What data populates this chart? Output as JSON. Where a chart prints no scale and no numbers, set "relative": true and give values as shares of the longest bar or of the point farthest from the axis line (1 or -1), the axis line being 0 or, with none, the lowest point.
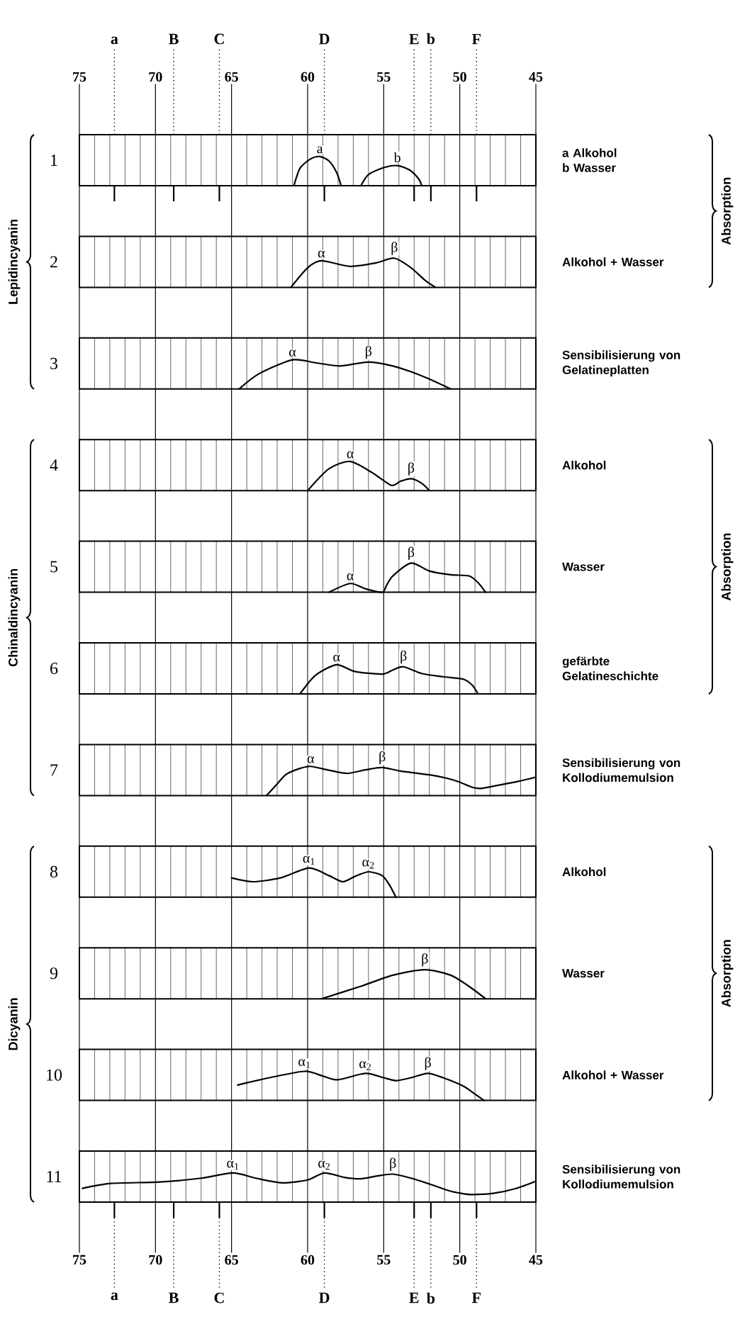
{
  "chart_data": [
    {
      "type": "line",
      "title": "1",
      "y2label": "Absorption",
      "relative": true,
      "xlim": [
        75,
        45
      ],
      "xticks": [
        75,
        {
          "value": 74,
          "label": null
        },
        {
          "value": 73,
          "label": null
        },
        {
          "value": 72,
          "label": null
        },
        {
          "value": 71,
          "label": null
        },
        70,
        {
          "value": 69,
          "label": null
        },
        {
          "value": 68,
          "label": null
        },
        {
          "value": 67,
          "label": null
        },
        {
          "value": 66,
          "label": null
        },
        65,
        {
          "value": 64,
          "label": null
        },
        {
          "value": 63,
          "label": null
        },
        {
          "value": 62,
          "label": null
        },
        {
          "value": 61,
          "label": null
        },
        60,
        {
          "value": 59,
          "label": null
        },
        {
          "value": 58,
          "label": null
        },
        {
          "value": 57,
          "label": null
        },
        {
          "value": 56,
          "label": null
        },
        55,
        {
          "value": 54,
          "label": null
        },
        {
          "value": 53,
          "label": null
        },
        {
          "value": 52,
          "label": null
        },
        {
          "value": 51,
          "label": null
        },
        50,
        {
          "value": 49,
          "label": null
        },
        {
          "value": 48,
          "label": null
        },
        {
          "value": 47,
          "label": null
        },
        {
          "value": 46,
          "label": null
        },
        45
      ],
      "tick_labels": "x",
      "grid": "x",
      "series": [
        {
          "color": "#000000",
          "x": [
            60.9,
            60.5,
            59.8,
            59.2,
            58.6,
            58.1,
            57.8
          ],
          "values": [
            0,
            0.6,
            0.92,
            1,
            0.85,
            0.46,
            0
          ]
        },
        {
          "color": "#000000",
          "x": [
            56.5,
            56.0,
            55.0,
            54.1,
            53.3,
            52.7,
            52.5
          ],
          "values": [
            0,
            0.38,
            0.62,
            0.69,
            0.54,
            0.23,
            0
          ]
        }
      ],
      "annotations": [
        "a Alkohol",
        "b Wasser",
        {
          "text": "a",
          "x": 59.2,
          "y": 1
        },
        {
          "text": "b",
          "x": 54.1,
          "y": 0.69
        }
      ],
      "ref_lines": [
        {
          "axis": "x",
          "value": 72.7,
          "label": "a",
          "line_style": "dotted"
        },
        {
          "axis": "x",
          "value": 68.8,
          "label": "B",
          "line_style": "dotted"
        },
        {
          "axis": "x",
          "value": 65.8,
          "label": "C",
          "line_style": "dotted"
        },
        {
          "axis": "x",
          "value": 58.9,
          "label": "D",
          "line_style": "dotted"
        },
        {
          "axis": "x",
          "value": 53.0,
          "label": "E",
          "line_style": "dotted"
        },
        {
          "axis": "x",
          "value": 51.9,
          "label": "b",
          "line_style": "dotted"
        },
        {
          "axis": "x",
          "value": 48.9,
          "label": "F",
          "line_style": "dotted"
        }
      ]
    },
    {
      "type": "line",
      "title": "2",
      "ylabel": "Lepidincyanin",
      "relative": true,
      "xlim": [
        75,
        45
      ],
      "xticks": [
        75,
        {
          "value": 74,
          "label": null
        },
        {
          "value": 73,
          "label": null
        },
        {
          "value": 72,
          "label": null
        },
        {
          "value": 71,
          "label": null
        },
        70,
        {
          "value": 69,
          "label": null
        },
        {
          "value": 68,
          "label": null
        },
        {
          "value": 67,
          "label": null
        },
        {
          "value": 66,
          "label": null
        },
        65,
        {
          "value": 64,
          "label": null
        },
        {
          "value": 63,
          "label": null
        },
        {
          "value": 62,
          "label": null
        },
        {
          "value": 61,
          "label": null
        },
        60,
        {
          "value": 59,
          "label": null
        },
        {
          "value": 58,
          "label": null
        },
        {
          "value": 57,
          "label": null
        },
        {
          "value": 56,
          "label": null
        },
        55,
        {
          "value": 54,
          "label": null
        },
        {
          "value": 53,
          "label": null
        },
        {
          "value": 52,
          "label": null
        },
        {
          "value": 51,
          "label": null
        },
        50,
        {
          "value": 49,
          "label": null
        },
        {
          "value": 48,
          "label": null
        },
        {
          "value": 47,
          "label": null
        },
        {
          "value": 46,
          "label": null
        },
        45
      ],
      "tick_labels": false,
      "grid": "x",
      "series": [
        {
          "color": "#000000",
          "x": [
            61.1,
            60.0,
            59.1,
            57.2,
            55.5,
            54.3,
            53.2,
            52.3,
            51.6
          ],
          "values": [
            0,
            0.67,
            0.91,
            0.72,
            0.84,
            1,
            0.67,
            0.25,
            0
          ]
        }
      ],
      "annotations": [
        "Alkohol + Wasser",
        {
          "text": "α",
          "x": 59.1,
          "y": 0.91
        },
        {
          "text": "β",
          "x": 54.3,
          "y": 1
        }
      ]
    },
    {
      "type": "line",
      "title": "3",
      "relative": true,
      "xlim": [
        75,
        45
      ],
      "xticks": [
        75,
        {
          "value": 74,
          "label": null
        },
        {
          "value": 73,
          "label": null
        },
        {
          "value": 72,
          "label": null
        },
        {
          "value": 71,
          "label": null
        },
        70,
        {
          "value": 69,
          "label": null
        },
        {
          "value": 68,
          "label": null
        },
        {
          "value": 67,
          "label": null
        },
        {
          "value": 66,
          "label": null
        },
        65,
        {
          "value": 64,
          "label": null
        },
        {
          "value": 63,
          "label": null
        },
        {
          "value": 62,
          "label": null
        },
        {
          "value": 61,
          "label": null
        },
        60,
        {
          "value": 59,
          "label": null
        },
        {
          "value": 58,
          "label": null
        },
        {
          "value": 57,
          "label": null
        },
        {
          "value": 56,
          "label": null
        },
        55,
        {
          "value": 54,
          "label": null
        },
        {
          "value": 53,
          "label": null
        },
        {
          "value": 52,
          "label": null
        },
        {
          "value": 51,
          "label": null
        },
        50,
        {
          "value": 49,
          "label": null
        },
        {
          "value": 48,
          "label": null
        },
        {
          "value": 47,
          "label": null
        },
        {
          "value": 46,
          "label": null
        },
        45
      ],
      "tick_labels": false,
      "grid": "x",
      "series": [
        {
          "color": "#000000",
          "x": [
            64.5,
            63.2,
            61.0,
            59.5,
            57.9,
            56.0,
            54.4,
            53.2,
            52.0,
            50.6
          ],
          "values": [
            0,
            0.52,
            1,
            0.9,
            0.79,
            0.92,
            0.79,
            0.59,
            0.34,
            0
          ]
        }
      ],
      "annotations": [
        "Sensibilisierung von Gelatineplatten",
        {
          "text": "α",
          "x": 61.0,
          "y": 1
        },
        {
          "text": "β",
          "x": 56.0,
          "y": 0.92
        }
      ]
    },
    {
      "type": "line",
      "title": "4",
      "y2label": "Absorption",
      "relative": true,
      "xlim": [
        75,
        45
      ],
      "xticks": [
        75,
        {
          "value": 74,
          "label": null
        },
        {
          "value": 73,
          "label": null
        },
        {
          "value": 72,
          "label": null
        },
        {
          "value": 71,
          "label": null
        },
        70,
        {
          "value": 69,
          "label": null
        },
        {
          "value": 68,
          "label": null
        },
        {
          "value": 67,
          "label": null
        },
        {
          "value": 66,
          "label": null
        },
        65,
        {
          "value": 64,
          "label": null
        },
        {
          "value": 63,
          "label": null
        },
        {
          "value": 62,
          "label": null
        },
        {
          "value": 61,
          "label": null
        },
        60,
        {
          "value": 59,
          "label": null
        },
        {
          "value": 58,
          "label": null
        },
        {
          "value": 57,
          "label": null
        },
        {
          "value": 56,
          "label": null
        },
        55,
        {
          "value": 54,
          "label": null
        },
        {
          "value": 53,
          "label": null
        },
        {
          "value": 52,
          "label": null
        },
        {
          "value": 51,
          "label": null
        },
        50,
        {
          "value": 49,
          "label": null
        },
        {
          "value": 48,
          "label": null
        },
        {
          "value": 47,
          "label": null
        },
        {
          "value": 46,
          "label": null
        },
        45
      ],
      "tick_labels": false,
      "grid": "x",
      "series": [
        {
          "color": "#000000",
          "x": [
            60.0,
            58.6,
            57.2,
            55.8,
            54.5,
            53.9,
            53.2,
            52.5,
            52.0
          ],
          "values": [
            0,
            0.75,
            1,
            0.63,
            0.18,
            0.32,
            0.41,
            0.25,
            0
          ]
        }
      ],
      "annotations": [
        "Alkohol",
        {
          "text": "α",
          "x": 57.2,
          "y": 1
        },
        {
          "text": "β",
          "x": 53.2,
          "y": 0.41
        }
      ]
    },
    {
      "type": "line",
      "title": "5",
      "ylabel": "Chinaldincyanin",
      "relative": true,
      "xlim": [
        75,
        45
      ],
      "xticks": [
        75,
        {
          "value": 74,
          "label": null
        },
        {
          "value": 73,
          "label": null
        },
        {
          "value": 72,
          "label": null
        },
        {
          "value": 71,
          "label": null
        },
        70,
        {
          "value": 69,
          "label": null
        },
        {
          "value": 68,
          "label": null
        },
        {
          "value": 67,
          "label": null
        },
        {
          "value": 66,
          "label": null
        },
        65,
        {
          "value": 64,
          "label": null
        },
        {
          "value": 63,
          "label": null
        },
        {
          "value": 62,
          "label": null
        },
        {
          "value": 61,
          "label": null
        },
        60,
        {
          "value": 59,
          "label": null
        },
        {
          "value": 58,
          "label": null
        },
        {
          "value": 57,
          "label": null
        },
        {
          "value": 56,
          "label": null
        },
        55,
        {
          "value": 54,
          "label": null
        },
        {
          "value": 53,
          "label": null
        },
        {
          "value": 52,
          "label": null
        },
        {
          "value": 51,
          "label": null
        },
        50,
        {
          "value": 49,
          "label": null
        },
        {
          "value": 48,
          "label": null
        },
        {
          "value": 47,
          "label": null
        },
        {
          "value": 46,
          "label": null
        },
        45
      ],
      "tick_labels": false,
      "grid": "x",
      "series": [
        {
          "color": "#000000",
          "x": [
            58.6,
            57.2,
            56.2,
            55.1,
            54.8,
            54.4,
            53.2,
            52.0,
            50.6,
            49.4,
            48.8,
            48.3
          ],
          "values": [
            0,
            0.3,
            0.12,
            0,
            0.25,
            0.56,
            1,
            0.73,
            0.6,
            0.56,
            0.33,
            0
          ]
        }
      ],
      "annotations": [
        "Wasser",
        {
          "text": "α",
          "x": 57.2,
          "y": 0.3
        },
        {
          "text": "β",
          "x": 53.2,
          "y": 1
        }
      ]
    },
    {
      "type": "line",
      "title": "6",
      "relative": true,
      "xlim": [
        75,
        45
      ],
      "xticks": [
        75,
        {
          "value": 74,
          "label": null
        },
        {
          "value": 73,
          "label": null
        },
        {
          "value": 72,
          "label": null
        },
        {
          "value": 71,
          "label": null
        },
        70,
        {
          "value": 69,
          "label": null
        },
        {
          "value": 68,
          "label": null
        },
        {
          "value": 67,
          "label": null
        },
        {
          "value": 66,
          "label": null
        },
        65,
        {
          "value": 64,
          "label": null
        },
        {
          "value": 63,
          "label": null
        },
        {
          "value": 62,
          "label": null
        },
        {
          "value": 61,
          "label": null
        },
        60,
        {
          "value": 59,
          "label": null
        },
        {
          "value": 58,
          "label": null
        },
        {
          "value": 57,
          "label": null
        },
        {
          "value": 56,
          "label": null
        },
        55,
        {
          "value": 54,
          "label": null
        },
        {
          "value": 53,
          "label": null
        },
        {
          "value": 52,
          "label": null
        },
        {
          "value": 51,
          "label": null
        },
        50,
        {
          "value": 49,
          "label": null
        },
        {
          "value": 48,
          "label": null
        },
        {
          "value": 47,
          "label": null
        },
        {
          "value": 46,
          "label": null
        },
        45
      ],
      "tick_labels": false,
      "grid": "x",
      "series": [
        {
          "color": "#000000",
          "x": [
            60.5,
            59.5,
            58.1,
            56.9,
            55.1,
            54.4,
            53.7,
            52.5,
            51.1,
            49.8,
            49.2,
            48.8
          ],
          "values": [
            0,
            0.63,
            1,
            0.77,
            0.68,
            0.82,
            0.93,
            0.7,
            0.59,
            0.51,
            0.31,
            0
          ]
        }
      ],
      "annotations": [
        "gefärbte Gelatineschichte",
        {
          "text": "α",
          "x": 58.1,
          "y": 1
        },
        {
          "text": "β",
          "x": 53.7,
          "y": 0.93
        }
      ]
    },
    {
      "type": "line",
      "title": "7",
      "relative": true,
      "xlim": [
        75,
        45
      ],
      "xticks": [
        75,
        {
          "value": 74,
          "label": null
        },
        {
          "value": 73,
          "label": null
        },
        {
          "value": 72,
          "label": null
        },
        {
          "value": 71,
          "label": null
        },
        70,
        {
          "value": 69,
          "label": null
        },
        {
          "value": 68,
          "label": null
        },
        {
          "value": 67,
          "label": null
        },
        {
          "value": 66,
          "label": null
        },
        65,
        {
          "value": 64,
          "label": null
        },
        {
          "value": 63,
          "label": null
        },
        {
          "value": 62,
          "label": null
        },
        {
          "value": 61,
          "label": null
        },
        60,
        {
          "value": 59,
          "label": null
        },
        {
          "value": 58,
          "label": null
        },
        {
          "value": 57,
          "label": null
        },
        {
          "value": 56,
          "label": null
        },
        55,
        {
          "value": 54,
          "label": null
        },
        {
          "value": 53,
          "label": null
        },
        {
          "value": 52,
          "label": null
        },
        {
          "value": 51,
          "label": null
        },
        50,
        {
          "value": 49,
          "label": null
        },
        {
          "value": 48,
          "label": null
        },
        {
          "value": 47,
          "label": null
        },
        {
          "value": 46,
          "label": null
        },
        45
      ],
      "tick_labels": false,
      "grid": "x",
      "series": [
        {
          "color": "#000000",
          "x": [
            62.7,
            62.0,
            61.4,
            60.5,
            59.8,
            58.6,
            57.4,
            56.2,
            55.1,
            53.9,
            52.0,
            50.9,
            50.1,
            49.1,
            48.5,
            47.7,
            46.2,
            45.0
          ],
          "values": [
            0,
            0.4,
            0.73,
            0.93,
            1,
            0.87,
            0.76,
            0.88,
            0.96,
            0.84,
            0.71,
            0.6,
            0.48,
            0.27,
            0.25,
            0.33,
            0.48,
            0.63
          ]
        }
      ],
      "annotations": [
        "Sensibilisierung von Kollodiumemulsion",
        {
          "text": "α",
          "x": 59.8,
          "y": 1
        },
        {
          "text": "β",
          "x": 55.1,
          "y": 0.96
        }
      ]
    },
    {
      "type": "line",
      "title": "8",
      "y2label": "Absorption",
      "relative": true,
      "xlim": [
        75,
        45
      ],
      "xticks": [
        75,
        {
          "value": 74,
          "label": null
        },
        {
          "value": 73,
          "label": null
        },
        {
          "value": 72,
          "label": null
        },
        {
          "value": 71,
          "label": null
        },
        70,
        {
          "value": 69,
          "label": null
        },
        {
          "value": 68,
          "label": null
        },
        {
          "value": 67,
          "label": null
        },
        {
          "value": 66,
          "label": null
        },
        65,
        {
          "value": 64,
          "label": null
        },
        {
          "value": 63,
          "label": null
        },
        {
          "value": 62,
          "label": null
        },
        {
          "value": 61,
          "label": null
        },
        60,
        {
          "value": 59,
          "label": null
        },
        {
          "value": 58,
          "label": null
        },
        {
          "value": 57,
          "label": null
        },
        {
          "value": 56,
          "label": null
        },
        55,
        {
          "value": 54,
          "label": null
        },
        {
          "value": 53,
          "label": null
        },
        {
          "value": 52,
          "label": null
        },
        {
          "value": 51,
          "label": null
        },
        50,
        {
          "value": 49,
          "label": null
        },
        {
          "value": 48,
          "label": null
        },
        {
          "value": 47,
          "label": null
        },
        {
          "value": 46,
          "label": null
        },
        45
      ],
      "tick_labels": false,
      "grid": "x",
      "series": [
        {
          "color": "#000000",
          "x": [
            65.0,
            63.6,
            61.8,
            59.9,
            58.6,
            57.7,
            56.9,
            56.0,
            55.1,
            54.6,
            54.2
          ],
          "values": [
            0.66,
            0.53,
            0.66,
            1,
            0.74,
            0.53,
            0.71,
            0.87,
            0.74,
            0.4,
            0
          ]
        }
      ],
      "annotations": [
        "Alkohol",
        {
          "text": "α$_{1}$",
          "x": 59.9,
          "y": 1
        },
        {
          "text": "α$_{2}$",
          "x": 56.0,
          "y": 0.87
        }
      ]
    },
    {
      "type": "line",
      "title": "9",
      "ylabel": "Dicyanin",
      "relative": true,
      "xlim": [
        75,
        45
      ],
      "xticks": [
        75,
        {
          "value": 74,
          "label": null
        },
        {
          "value": 73,
          "label": null
        },
        {
          "value": 72,
          "label": null
        },
        {
          "value": 71,
          "label": null
        },
        70,
        {
          "value": 69,
          "label": null
        },
        {
          "value": 68,
          "label": null
        },
        {
          "value": 67,
          "label": null
        },
        {
          "value": 66,
          "label": null
        },
        65,
        {
          "value": 64,
          "label": null
        },
        {
          "value": 63,
          "label": null
        },
        {
          "value": 62,
          "label": null
        },
        {
          "value": 61,
          "label": null
        },
        60,
        {
          "value": 59,
          "label": null
        },
        {
          "value": 58,
          "label": null
        },
        {
          "value": 57,
          "label": null
        },
        {
          "value": 56,
          "label": null
        },
        55,
        {
          "value": 54,
          "label": null
        },
        {
          "value": 53,
          "label": null
        },
        {
          "value": 52,
          "label": null
        },
        {
          "value": 51,
          "label": null
        },
        50,
        {
          "value": 49,
          "label": null
        },
        {
          "value": 48,
          "label": null
        },
        {
          "value": 47,
          "label": null
        },
        {
          "value": 46,
          "label": null
        },
        45
      ],
      "tick_labels": false,
      "grid": "x",
      "series": [
        {
          "color": "#000000",
          "x": [
            59.1,
            56.5,
            54.4,
            52.3,
            50.6,
            49.4,
            48.3
          ],
          "values": [
            0,
            0.43,
            0.81,
            1,
            0.81,
            0.43,
            0
          ]
        }
      ],
      "annotations": [
        "Wasser",
        {
          "text": "β",
          "x": 52.3,
          "y": 1
        }
      ]
    },
    {
      "type": "line",
      "title": "10",
      "relative": true,
      "xlim": [
        75,
        45
      ],
      "xticks": [
        75,
        {
          "value": 74,
          "label": null
        },
        {
          "value": 73,
          "label": null
        },
        {
          "value": 72,
          "label": null
        },
        {
          "value": 71,
          "label": null
        },
        70,
        {
          "value": 69,
          "label": null
        },
        {
          "value": 68,
          "label": null
        },
        {
          "value": 67,
          "label": null
        },
        {
          "value": 66,
          "label": null
        },
        65,
        {
          "value": 64,
          "label": null
        },
        {
          "value": 63,
          "label": null
        },
        {
          "value": 62,
          "label": null
        },
        {
          "value": 61,
          "label": null
        },
        60,
        {
          "value": 59,
          "label": null
        },
        {
          "value": 58,
          "label": null
        },
        {
          "value": 57,
          "label": null
        },
        {
          "value": 56,
          "label": null
        },
        55,
        {
          "value": 54,
          "label": null
        },
        {
          "value": 53,
          "label": null
        },
        {
          "value": 52,
          "label": null
        },
        {
          "value": 51,
          "label": null
        },
        50,
        {
          "value": 49,
          "label": null
        },
        {
          "value": 48,
          "label": null
        },
        {
          "value": 47,
          "label": null
        },
        {
          "value": 46,
          "label": null
        },
        45
      ],
      "tick_labels": false,
      "grid": "x",
      "series": [
        {
          "color": "#000000",
          "x": [
            64.6,
            62.5,
            60.2,
            58.9,
            58.0,
            56.2,
            55.0,
            54.2,
            53.2,
            52.1,
            51.1,
            49.8,
            49.0,
            48.4
          ],
          "values": [
            0.53,
            0.78,
            1,
            0.82,
            0.71,
            0.93,
            0.78,
            0.68,
            0.78,
            0.93,
            0.78,
            0.5,
            0.22,
            0
          ]
        }
      ],
      "annotations": [
        "Alkohol + Wasser",
        {
          "text": "α$_{1}$",
          "x": 60.2,
          "y": 1
        },
        {
          "text": "α$_{2}$",
          "x": 56.2,
          "y": 0.93
        },
        {
          "text": "β",
          "x": 52.1,
          "y": 0.93
        }
      ]
    },
    {
      "type": "line",
      "title": "11",
      "relative": true,
      "xlim": [
        75,
        45
      ],
      "xticks": [
        75,
        {
          "value": 74,
          "label": null
        },
        {
          "value": 73,
          "label": null
        },
        {
          "value": 72,
          "label": null
        },
        {
          "value": 71,
          "label": null
        },
        70,
        {
          "value": 69,
          "label": null
        },
        {
          "value": 68,
          "label": null
        },
        {
          "value": 67,
          "label": null
        },
        {
          "value": 66,
          "label": null
        },
        65,
        {
          "value": 64,
          "label": null
        },
        {
          "value": 63,
          "label": null
        },
        {
          "value": 62,
          "label": null
        },
        {
          "value": 61,
          "label": null
        },
        60,
        {
          "value": 59,
          "label": null
        },
        {
          "value": 58,
          "label": null
        },
        {
          "value": 57,
          "label": null
        },
        {
          "value": 56,
          "label": null
        },
        55,
        {
          "value": 54,
          "label": null
        },
        {
          "value": 53,
          "label": null
        },
        {
          "value": 52,
          "label": null
        },
        {
          "value": 51,
          "label": null
        },
        50,
        {
          "value": 49,
          "label": null
        },
        {
          "value": 48,
          "label": null
        },
        {
          "value": 47,
          "label": null
        },
        {
          "value": 46,
          "label": null
        },
        45
      ],
      "tick_labels": "x",
      "grid": "x",
      "series": [
        {
          "color": "#000000",
          "x": [
            74.8,
            72.9,
            69.7,
            67.0,
            64.9,
            63.4,
            61.7,
            60.0,
            58.9,
            57.6,
            56.5,
            55.5,
            54.4,
            53.2,
            52.1,
            50.7,
            49.9,
            49.2,
            47.8,
            46.3,
            45.0
          ],
          "values": [
            0.47,
            0.64,
            0.69,
            0.82,
            1,
            0.82,
            0.66,
            0.76,
            1,
            0.85,
            0.8,
            0.89,
            0.96,
            0.82,
            0.64,
            0.39,
            0.3,
            0.26,
            0.3,
            0.47,
            0.72
          ]
        }
      ],
      "annotations": [
        "Sensibilisierung von Kollodiumemulsion",
        {
          "text": "α$_{1}$",
          "x": 64.9,
          "y": 1
        },
        {
          "text": "α$_{2}$",
          "x": 58.9,
          "y": 1
        },
        {
          "text": "β",
          "x": 54.4,
          "y": 0.96
        }
      ],
      "ref_lines": [
        {
          "axis": "x",
          "value": 72.7,
          "label": "a",
          "line_style": "dotted"
        },
        {
          "axis": "x",
          "value": 68.8,
          "label": "B",
          "line_style": "dotted"
        },
        {
          "axis": "x",
          "value": 65.8,
          "label": "C",
          "line_style": "dotted"
        },
        {
          "axis": "x",
          "value": 58.9,
          "label": "D",
          "line_style": "dotted"
        },
        {
          "axis": "x",
          "value": 53.0,
          "label": "E",
          "line_style": "dotted"
        },
        {
          "axis": "x",
          "value": 51.9,
          "label": "b",
          "line_style": "dotted"
        },
        {
          "axis": "x",
          "value": 48.9,
          "label": "F",
          "line_style": "dotted"
        }
      ]
    }
  ]
}
